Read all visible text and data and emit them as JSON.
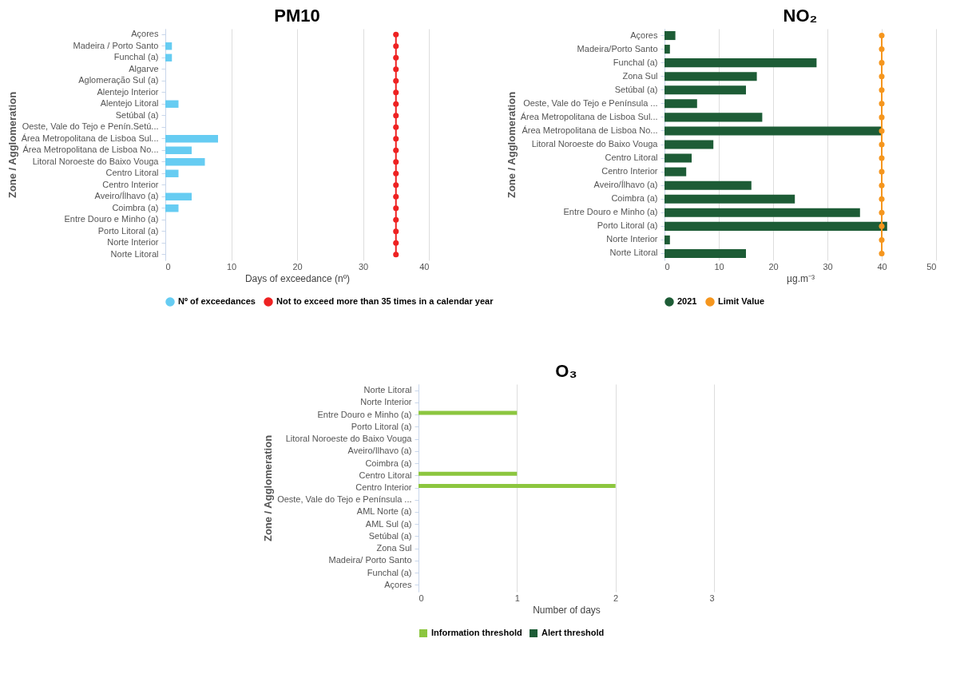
{
  "chart_data": [
    {
      "type": "bar",
      "orientation": "horizontal",
      "title": "PM10",
      "xlabel": "Days of exceedance (nº)",
      "ylabel": "Zone / Agglomeration",
      "categories": [
        "Açores",
        "Madeira / Porto Santo",
        "Funchal (a)",
        "Algarve",
        "Aglomeração Sul (a)",
        "Alentejo Interior",
        "Alentejo Litoral",
        "Setúbal (a)",
        "Oeste, Vale do Tejo e Penín.Setú...",
        "Área Metropolitana de Lisboa Sul...",
        "Área Metropolitana de Lisboa No...",
        "Litoral Noroeste do Baixo Vouga",
        "Centro Litoral",
        "Centro Interior",
        "Aveiro/Ílhavo (a)",
        "Coimbra (a)",
        "Entre Douro e Minho (a)",
        "Porto Litoral (a)",
        "Norte Interior",
        "Norte Litoral"
      ],
      "series": [
        {
          "name": "Nº of exceedances",
          "color": "#66ccf2",
          "values": [
            0,
            1,
            1,
            0,
            0,
            0,
            2,
            0,
            0,
            8,
            4,
            6,
            2,
            0,
            4,
            2,
            0,
            0,
            0,
            0
          ]
        },
        {
          "name": "Not to exceed more than 35 times in a calendar year",
          "type": "line",
          "color": "#ee2222",
          "values": [
            35,
            35,
            35,
            35,
            35,
            35,
            35,
            35,
            35,
            35,
            35,
            35,
            35,
            35,
            35,
            35,
            35,
            35,
            35,
            35
          ]
        }
      ],
      "xlim": [
        0,
        40
      ],
      "xticks": [
        0,
        10,
        20,
        30,
        40
      ],
      "grid": "x",
      "legend": "bottom",
      "marker": "circle"
    },
    {
      "type": "bar",
      "orientation": "horizontal",
      "title": "NO₂",
      "xlabel": "µg.m⁻³",
      "ylabel": "Zone / Agglomeration",
      "categories": [
        "Açores",
        "Madeira/Porto Santo",
        "Funchal (a)",
        "Zona Sul",
        "Setúbal (a)",
        "Oeste, Vale do Tejo e Península ...",
        "Área Metropolitana de Lisboa Sul...",
        "Área Metropolitana de Lisboa No...",
        "Litoral Noroeste do Baixo Vouga",
        "Centro Litoral",
        "Centro Interior",
        "Aveiro/Ílhavo (a)",
        "Coimbra (a)",
        "Entre Douro e Minho (a)",
        "Porto Litoral (a)",
        "Norte Interior",
        "Norte Litoral"
      ],
      "series": [
        {
          "name": "2021",
          "color": "#1d5c36",
          "values": [
            2,
            1,
            28,
            17,
            15,
            6,
            18,
            40,
            9,
            5,
            4,
            16,
            24,
            36,
            41,
            1,
            15
          ]
        },
        {
          "name": "Limit Value",
          "type": "line",
          "color": "#f5961e",
          "values": [
            40,
            40,
            40,
            40,
            40,
            40,
            40,
            40,
            40,
            40,
            40,
            40,
            40,
            40,
            40,
            40,
            40
          ]
        }
      ],
      "xlim": [
        0,
        50
      ],
      "xticks": [
        0,
        10,
        20,
        30,
        40,
        50
      ],
      "grid": "x",
      "legend": "bottom",
      "marker": "circle"
    },
    {
      "type": "bar",
      "orientation": "horizontal",
      "title": "O₃",
      "xlabel": "Number of days",
      "ylabel": "Zone / Agglomeration",
      "categories": [
        "Norte Litoral",
        "Norte Interior",
        "Entre Douro e Minho (a)",
        "Porto Litoral (a)",
        "Litoral Noroeste do Baixo Vouga",
        "Aveiro/Ilhavo (a)",
        "Coimbra (a)",
        "Centro Litoral",
        "Centro Interior",
        "Oeste, Vale do Tejo e Península ...",
        "AML Norte (a)",
        "AML Sul (a)",
        "Setúbal (a)",
        "Zona Sul",
        "Madeira/ Porto Santo",
        "Funchal (a)",
        "Açores"
      ],
      "series": [
        {
          "name": "Information threshold",
          "color": "#8cc63f",
          "values": [
            0,
            0,
            1,
            0,
            0,
            0,
            0,
            1,
            2,
            0,
            0,
            0,
            0,
            0,
            0,
            0,
            0
          ]
        },
        {
          "name": "Alert threshold",
          "color": "#1d5c36",
          "values": [
            0,
            0,
            0,
            0,
            0,
            0,
            0,
            0,
            0,
            0,
            0,
            0,
            0,
            0,
            0,
            0,
            0
          ]
        }
      ],
      "xlim": [
        0,
        3
      ],
      "xticks": [
        0,
        1,
        2,
        3
      ],
      "grid": "x",
      "legend": "bottom"
    }
  ]
}
